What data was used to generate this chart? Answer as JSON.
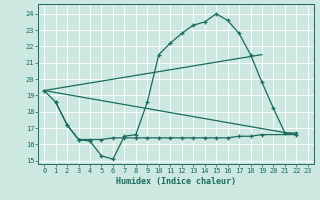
{
  "xlabel": "Humidex (Indice chaleur)",
  "background_color": "#cce8e0",
  "line_color": "#1a6b60",
  "grid_color": "#ffffff",
  "xlim": [
    -0.5,
    23.5
  ],
  "ylim": [
    14.8,
    24.6
  ],
  "yticks": [
    15,
    16,
    17,
    18,
    19,
    20,
    21,
    22,
    23,
    24
  ],
  "xticks": [
    0,
    1,
    2,
    3,
    4,
    5,
    6,
    7,
    8,
    9,
    10,
    11,
    12,
    13,
    14,
    15,
    16,
    17,
    18,
    19,
    20,
    21,
    22,
    23
  ],
  "line1_x": [
    0,
    1,
    2,
    3,
    4,
    5,
    6,
    7,
    8,
    9,
    10,
    11,
    12,
    13,
    14,
    15,
    16,
    17,
    18,
    19,
    20,
    21,
    22
  ],
  "line1_y": [
    19.3,
    18.6,
    17.2,
    16.3,
    16.2,
    15.3,
    15.1,
    16.5,
    16.6,
    18.6,
    21.5,
    22.2,
    22.8,
    23.3,
    23.5,
    24.0,
    23.6,
    22.8,
    21.5,
    19.8,
    18.2,
    16.7,
    16.7
  ],
  "line2_x": [
    1,
    2,
    3,
    4,
    5,
    6,
    7,
    8,
    9,
    10,
    11,
    12,
    13,
    14,
    15,
    16,
    17,
    18,
    19,
    22
  ],
  "line2_y": [
    18.6,
    17.2,
    16.3,
    16.3,
    16.3,
    16.4,
    16.4,
    16.4,
    16.4,
    16.4,
    16.4,
    16.4,
    16.4,
    16.4,
    16.4,
    16.4,
    16.5,
    16.5,
    16.6,
    16.6
  ],
  "line3_x": [
    0,
    22
  ],
  "line3_y": [
    19.3,
    16.6
  ],
  "line4_x": [
    0,
    19
  ],
  "line4_y": [
    19.3,
    21.5
  ]
}
